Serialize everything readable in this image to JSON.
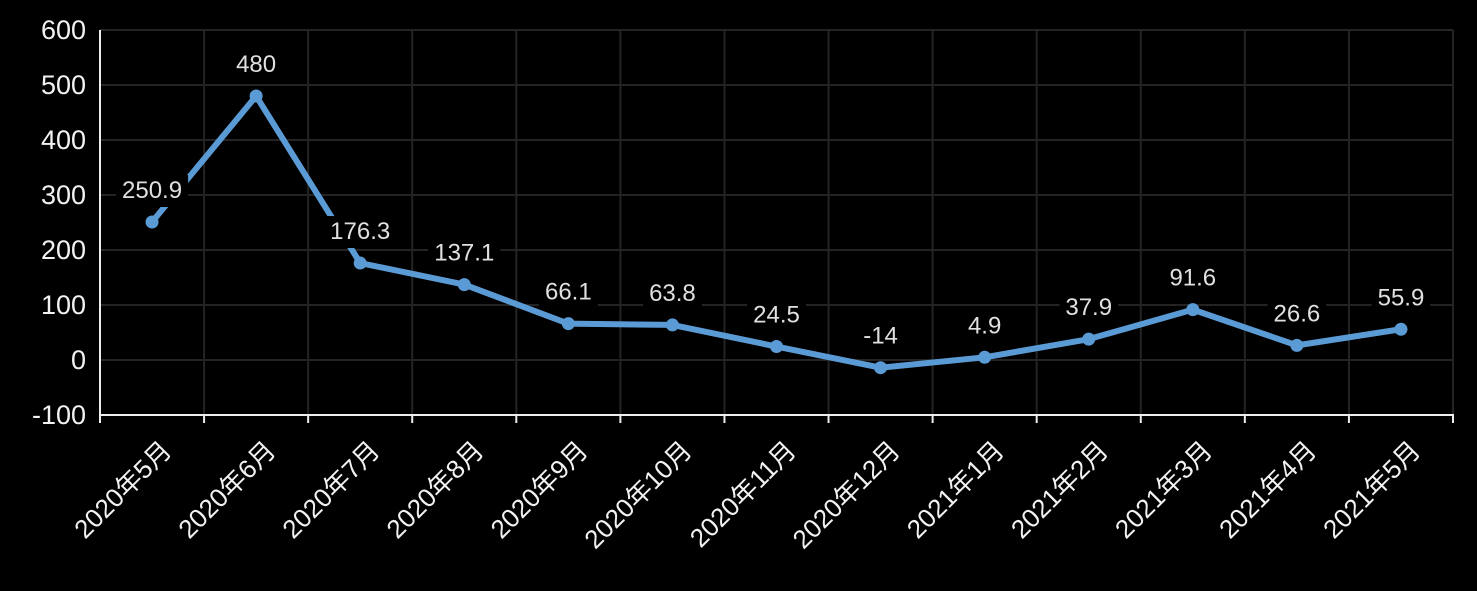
{
  "chart_data": {
    "type": "line",
    "title": "",
    "xlabel": "",
    "ylabel": "",
    "categories": [
      "2020年5月",
      "2020年6月",
      "2020年7月",
      "2020年8月",
      "2020年9月",
      "2020年10月",
      "2020年11月",
      "2020年12月",
      "2021年1月",
      "2021年2月",
      "2021年3月",
      "2021年4月",
      "2021年5月"
    ],
    "series": [
      {
        "name": "",
        "values": [
          250.9,
          480,
          176.3,
          137.1,
          66.1,
          63.8,
          24.5,
          -14,
          4.9,
          37.9,
          91.6,
          26.6,
          55.9
        ],
        "data_labels": [
          "250.9",
          "480",
          "176.3",
          "137.1",
          "66.1",
          "63.8",
          "24.5",
          "-14",
          "4.9",
          "37.9",
          "91.6",
          "26.6",
          "55.9"
        ]
      }
    ],
    "ylim": [
      -100,
      600
    ],
    "ytick_step": 100,
    "ytick_labels": [
      "-100",
      "0",
      "100",
      "200",
      "300",
      "400",
      "500",
      "600"
    ],
    "grid": "on",
    "legend": "none",
    "markers": "circle",
    "colors": {
      "background": "#000000",
      "series_line": "#5B9BD5",
      "marker_fill": "#5B9BD5",
      "gridline": "#242424",
      "axis_line": "#EDEDED",
      "axis_tick_text": "#F2F2F2",
      "data_label_text": "#E0E0E0"
    }
  }
}
